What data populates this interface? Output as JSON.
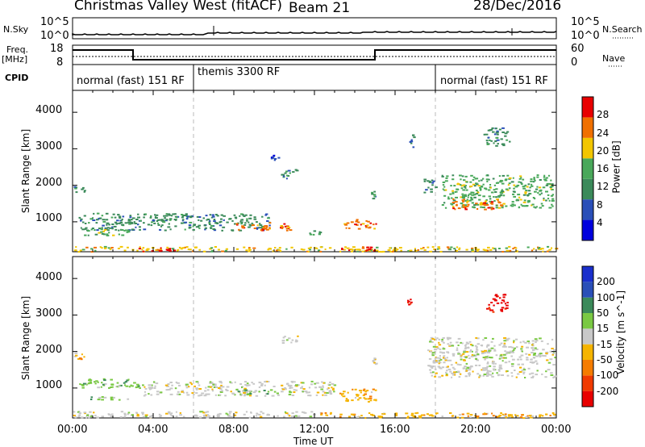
{
  "header": {
    "station": "Christmas Valley West (fitACF)",
    "beam": "Beam 21",
    "date": "28/Dec/2016"
  },
  "strip_labels": {
    "nsky": "N.Sky",
    "nsearch": "N.Search",
    "freq": "Freq.",
    "freq_unit": "[MHz]",
    "nave": "Nave",
    "cpid": "CPID",
    "nsky_ticks": [
      "10^5",
      "10^0"
    ],
    "nsearch_ticks": [
      "10^5",
      "10^0"
    ],
    "freq_ticks": [
      "18",
      "8"
    ],
    "nave_ticks": [
      "60",
      "0"
    ]
  },
  "cpid_segments": [
    {
      "label": "normal (fast) 151 RF",
      "start_hour": 0
    },
    {
      "label": "themis 3300 RF",
      "start_hour": 6
    },
    {
      "label": "normal (fast) 151 RF",
      "start_hour": 18
    }
  ],
  "chart_data": [
    {
      "type": "heatmap",
      "title": "",
      "xlabel": "Time UT",
      "ylabel": "Slant Range [km]",
      "x_ticks": [
        "00:00",
        "04:00",
        "08:00",
        "12:00",
        "16:00",
        "20:00",
        "00:00"
      ],
      "x_range_hours": [
        0,
        24
      ],
      "y_ticks": [
        "1000",
        "2000",
        "3000",
        "4000"
      ],
      "y_range_km": [
        180,
        4600
      ],
      "colorbar": {
        "label": "Power [dB]",
        "ticks": [
          "28",
          "24",
          "20",
          "16",
          "12",
          "8",
          "4"
        ],
        "range": [
          0,
          32
        ],
        "colors": [
          "#0000dd",
          "#2a4fb8",
          "#3b8a5a",
          "#49a85a",
          "#f2c600",
          "#f07000",
          "#e80000"
        ]
      },
      "bands": [
        {
          "t0": 0.0,
          "t1": 0.6,
          "r0": 1780,
          "r1": 1980,
          "level": 2
        },
        {
          "t0": 0.3,
          "t1": 9.8,
          "r0": 780,
          "r1": 1250,
          "level": 2
        },
        {
          "t0": 0.5,
          "t1": 3.0,
          "r0": 640,
          "r1": 820,
          "level": 3
        },
        {
          "t0": 8.0,
          "t1": 10.8,
          "r0": 780,
          "r1": 1000,
          "level": 5
        },
        {
          "t0": 13.4,
          "t1": 15.1,
          "r0": 830,
          "r1": 1080,
          "level": 5
        },
        {
          "t0": 11.7,
          "t1": 12.3,
          "r0": 660,
          "r1": 780,
          "level": 3
        },
        {
          "t0": 0.0,
          "t1": 24.0,
          "r0": 200,
          "r1": 340,
          "level": 4
        },
        {
          "t0": 3.2,
          "t1": 5.0,
          "r0": 210,
          "r1": 320,
          "level": 6
        },
        {
          "t0": 13.2,
          "t1": 15.0,
          "r0": 210,
          "r1": 320,
          "level": 6
        },
        {
          "t0": 18.3,
          "t1": 23.8,
          "r0": 1400,
          "r1": 2300,
          "level": 3
        },
        {
          "t0": 18.8,
          "t1": 21.3,
          "r0": 1350,
          "r1": 1650,
          "level": 5
        },
        {
          "t0": 17.4,
          "t1": 18.0,
          "r0": 1800,
          "r1": 2200,
          "level": 2
        },
        {
          "t0": 10.3,
          "t1": 11.2,
          "r0": 2200,
          "r1": 2450,
          "level": 2
        },
        {
          "t0": 14.8,
          "t1": 15.0,
          "r0": 1650,
          "r1": 1850,
          "level": 2
        },
        {
          "t0": 16.6,
          "t1": 16.9,
          "r0": 3050,
          "r1": 3450,
          "level": 1
        },
        {
          "t0": 20.3,
          "t1": 21.7,
          "r0": 3100,
          "r1": 3600,
          "level": 2
        },
        {
          "t0": 9.8,
          "t1": 10.4,
          "r0": 2700,
          "r1": 2850,
          "level": 1
        }
      ]
    },
    {
      "type": "heatmap",
      "title": "",
      "xlabel": "Time UT",
      "ylabel": "Slant Range [km]",
      "x_ticks": [
        "00:00",
        "04:00",
        "08:00",
        "12:00",
        "16:00",
        "20:00",
        "00:00"
      ],
      "x_range_hours": [
        0,
        24
      ],
      "y_ticks": [
        "1000",
        "2000",
        "3000",
        "4000"
      ],
      "y_range_km": [
        180,
        4600
      ],
      "colorbar": {
        "label": "Velocity [m s^-1]",
        "ticks": [
          "200",
          "100",
          "50",
          "15",
          "-15",
          "-50",
          "-100",
          "-200"
        ],
        "range": [
          -250,
          250
        ],
        "colors": [
          "#e80000",
          "#f03a00",
          "#f57c00",
          "#f5b400",
          "#c8c8c8",
          "#7ac943",
          "#3b8a5a",
          "#2a4fb8",
          "#1a2fcc"
        ]
      },
      "bands": [
        {
          "t0": 0.0,
          "t1": 0.6,
          "r0": 1780,
          "r1": 1980,
          "level": 3
        },
        {
          "t0": 0.3,
          "t1": 3.5,
          "r0": 1000,
          "r1": 1280,
          "level": 5
        },
        {
          "t0": 3.5,
          "t1": 13.0,
          "r0": 800,
          "r1": 1200,
          "level": 4
        },
        {
          "t0": 0.8,
          "t1": 3.0,
          "r0": 680,
          "r1": 780,
          "level": 5
        },
        {
          "t0": 8.0,
          "t1": 10.2,
          "r0": 840,
          "r1": 980,
          "level": 5
        },
        {
          "t0": 13.2,
          "t1": 15.1,
          "r0": 640,
          "r1": 1000,
          "level": 3
        },
        {
          "t0": 0.0,
          "t1": 12.0,
          "r0": 210,
          "r1": 380,
          "level": 4
        },
        {
          "t0": 12.0,
          "t1": 24.0,
          "r0": 200,
          "r1": 340,
          "level": 3
        },
        {
          "t0": 17.6,
          "t1": 23.9,
          "r0": 1300,
          "r1": 2400,
          "level": 4
        },
        {
          "t0": 16.6,
          "t1": 16.8,
          "r0": 3300,
          "r1": 3450,
          "level": 0
        },
        {
          "t0": 20.5,
          "t1": 21.6,
          "r0": 3100,
          "r1": 3600,
          "level": 0
        },
        {
          "t0": 10.3,
          "t1": 11.2,
          "r0": 2200,
          "r1": 2450,
          "level": 4
        },
        {
          "t0": 14.8,
          "t1": 15.0,
          "r0": 1650,
          "r1": 1850,
          "level": 4
        }
      ]
    }
  ]
}
